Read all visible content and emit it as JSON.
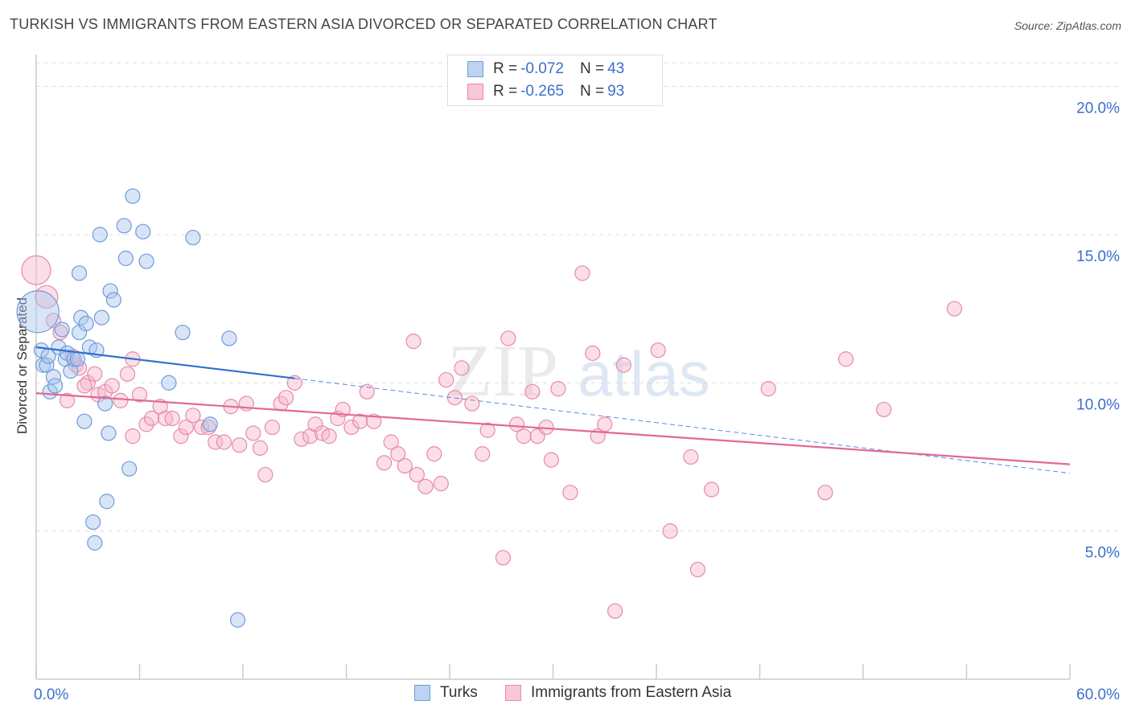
{
  "title": "TURKISH VS IMMIGRANTS FROM EASTERN ASIA DIVORCED OR SEPARATED CORRELATION CHART",
  "source": "Source: ZipAtlas.com",
  "watermark": {
    "zip": "ZIP",
    "atlas": "atlas"
  },
  "colors": {
    "turks_fill": "#a9c6ee",
    "turks_stroke": "#6f9ad9",
    "turks_line": "#2f6fd1",
    "asia_fill": "#f6b6ca",
    "asia_stroke": "#e68aa8",
    "asia_line": "#e06a94",
    "tick_label": "#3a6fcf",
    "grid": "#dddddd"
  },
  "legend": {
    "rows": [
      {
        "r_label": "R = ",
        "r_value": "-0.072",
        "n_label": "N = ",
        "n_value": "43"
      },
      {
        "r_label": "R = ",
        "r_value": "-0.265",
        "n_label": "N = ",
        "n_value": "93"
      }
    ]
  },
  "chart_data": {
    "type": "scatter",
    "title": "TURKISH VS IMMIGRANTS FROM EASTERN ASIA DIVORCED OR SEPARATED CORRELATION CHART",
    "xlabel": "",
    "ylabel": "Divorced or Separated",
    "xlim": [
      0,
      60
    ],
    "ylim": [
      0,
      20.8
    ],
    "x_tick_labels": [
      "0.0%",
      "60.0%"
    ],
    "y_ticks": [
      5,
      10,
      15,
      20
    ],
    "y_tick_labels": [
      "5.0%",
      "10.0%",
      "15.0%",
      "20.0%"
    ],
    "grid": true,
    "legend_position": "bottom-center",
    "series": [
      {
        "name": "Turks",
        "r": -0.072,
        "n": 43,
        "trend": {
          "x": [
            0,
            15
          ],
          "y": [
            11.2,
            10.15
          ],
          "dashed_to_x": 60,
          "dashed_to_y": 6.95
        },
        "points": [
          [
            0.1,
            12.4,
            26
          ],
          [
            0.3,
            11.1,
            9
          ],
          [
            0.4,
            10.6,
            9
          ],
          [
            0.6,
            10.6,
            9
          ],
          [
            0.7,
            10.9,
            9
          ],
          [
            0.8,
            9.7,
            9
          ],
          [
            1.0,
            10.2,
            9
          ],
          [
            1.1,
            9.9,
            9
          ],
          [
            1.3,
            11.2,
            9
          ],
          [
            1.5,
            11.8,
            9
          ],
          [
            1.7,
            10.8,
            9
          ],
          [
            1.8,
            11.0,
            9
          ],
          [
            2.0,
            10.4,
            9
          ],
          [
            2.2,
            10.8,
            9
          ],
          [
            2.4,
            10.8,
            9
          ],
          [
            2.5,
            11.7,
            9
          ],
          [
            2.5,
            13.7,
            9
          ],
          [
            2.6,
            12.2,
            9
          ],
          [
            2.8,
            8.7,
            9
          ],
          [
            2.9,
            12.0,
            9
          ],
          [
            3.1,
            11.2,
            9
          ],
          [
            3.3,
            5.3,
            9
          ],
          [
            3.4,
            4.6,
            9
          ],
          [
            3.5,
            11.1,
            9
          ],
          [
            3.7,
            15.0,
            9
          ],
          [
            3.8,
            12.2,
            9
          ],
          [
            4.0,
            9.3,
            9
          ],
          [
            4.1,
            6.0,
            9
          ],
          [
            4.2,
            8.3,
            9
          ],
          [
            4.3,
            13.1,
            9
          ],
          [
            4.5,
            12.8,
            9
          ],
          [
            5.1,
            15.3,
            9
          ],
          [
            5.2,
            14.2,
            9
          ],
          [
            5.4,
            7.1,
            9
          ],
          [
            5.6,
            16.3,
            9
          ],
          [
            6.2,
            15.1,
            9
          ],
          [
            6.4,
            14.1,
            9
          ],
          [
            7.7,
            10.0,
            9
          ],
          [
            8.5,
            11.7,
            9
          ],
          [
            9.1,
            14.9,
            9
          ],
          [
            10.1,
            8.6,
            9
          ],
          [
            11.2,
            11.5,
            9
          ],
          [
            11.7,
            2.0,
            9
          ]
        ]
      },
      {
        "name": "Immigrants from Eastern Asia",
        "r": -0.265,
        "n": 93,
        "trend": {
          "x": [
            0,
            60
          ],
          "y": [
            9.65,
            7.25
          ]
        },
        "points": [
          [
            0.0,
            13.8,
            18
          ],
          [
            0.6,
            12.9,
            14
          ],
          [
            1.0,
            12.1,
            9
          ],
          [
            1.4,
            11.7,
            9
          ],
          [
            2.1,
            10.9,
            9
          ],
          [
            2.3,
            10.6,
            9
          ],
          [
            2.5,
            10.5,
            9
          ],
          [
            3.0,
            10.0,
            9
          ],
          [
            3.4,
            10.3,
            9
          ],
          [
            3.6,
            9.6,
            9
          ],
          [
            4.0,
            9.7,
            9
          ],
          [
            4.4,
            9.9,
            9
          ],
          [
            4.9,
            9.4,
            9
          ],
          [
            5.3,
            10.3,
            9
          ],
          [
            5.6,
            10.8,
            9
          ],
          [
            6.0,
            9.6,
            9
          ],
          [
            6.4,
            8.6,
            9
          ],
          [
            6.7,
            8.8,
            9
          ],
          [
            7.2,
            9.2,
            9
          ],
          [
            7.5,
            8.8,
            9
          ],
          [
            7.9,
            8.8,
            9
          ],
          [
            8.4,
            8.2,
            9
          ],
          [
            8.7,
            8.5,
            9
          ],
          [
            9.1,
            8.9,
            9
          ],
          [
            9.6,
            8.5,
            9
          ],
          [
            10.0,
            8.5,
            9
          ],
          [
            10.4,
            8.0,
            9
          ],
          [
            10.9,
            8.0,
            9
          ],
          [
            11.3,
            9.2,
            9
          ],
          [
            11.8,
            7.9,
            9
          ],
          [
            12.2,
            9.3,
            9
          ],
          [
            12.6,
            8.3,
            9
          ],
          [
            13.0,
            7.8,
            9
          ],
          [
            13.3,
            6.9,
            9
          ],
          [
            13.7,
            8.5,
            9
          ],
          [
            14.2,
            9.3,
            9
          ],
          [
            14.5,
            9.5,
            9
          ],
          [
            15.0,
            10.0,
            9
          ],
          [
            15.4,
            8.1,
            9
          ],
          [
            15.9,
            8.2,
            9
          ],
          [
            16.2,
            8.6,
            9
          ],
          [
            16.6,
            8.3,
            9
          ],
          [
            17.0,
            8.2,
            9
          ],
          [
            17.5,
            8.8,
            9
          ],
          [
            17.8,
            9.1,
            9
          ],
          [
            18.3,
            8.5,
            9
          ],
          [
            18.8,
            8.7,
            9
          ],
          [
            19.2,
            9.7,
            9
          ],
          [
            19.6,
            8.7,
            9
          ],
          [
            20.2,
            7.3,
            9
          ],
          [
            20.6,
            8.0,
            9
          ],
          [
            21.0,
            7.6,
            9
          ],
          [
            21.4,
            7.2,
            9
          ],
          [
            21.9,
            11.4,
            9
          ],
          [
            22.1,
            6.9,
            9
          ],
          [
            22.6,
            6.5,
            9
          ],
          [
            23.1,
            7.6,
            9
          ],
          [
            23.5,
            6.6,
            9
          ],
          [
            23.8,
            10.1,
            9
          ],
          [
            24.3,
            9.5,
            9
          ],
          [
            24.7,
            10.5,
            9
          ],
          [
            25.3,
            9.3,
            9
          ],
          [
            25.9,
            7.6,
            9
          ],
          [
            26.2,
            8.4,
            9
          ],
          [
            27.1,
            4.1,
            9
          ],
          [
            27.4,
            11.5,
            9
          ],
          [
            27.9,
            8.6,
            9
          ],
          [
            28.3,
            8.2,
            9
          ],
          [
            28.8,
            9.7,
            9
          ],
          [
            29.1,
            8.2,
            9
          ],
          [
            29.6,
            8.5,
            9
          ],
          [
            29.9,
            7.4,
            9
          ],
          [
            30.3,
            9.8,
            9
          ],
          [
            31.0,
            6.3,
            9
          ],
          [
            31.7,
            13.7,
            9
          ],
          [
            32.3,
            11.0,
            9
          ],
          [
            32.6,
            8.2,
            9
          ],
          [
            33.0,
            8.6,
            9
          ],
          [
            33.6,
            2.3,
            9
          ],
          [
            34.1,
            10.6,
            9
          ],
          [
            36.1,
            11.1,
            9
          ],
          [
            36.8,
            5.0,
            9
          ],
          [
            38.0,
            7.5,
            9
          ],
          [
            38.4,
            3.7,
            9
          ],
          [
            39.2,
            6.4,
            9
          ],
          [
            42.5,
            9.8,
            9
          ],
          [
            45.8,
            6.3,
            9
          ],
          [
            47.0,
            10.8,
            9
          ],
          [
            49.2,
            9.1,
            9
          ],
          [
            53.3,
            12.5,
            9
          ],
          [
            1.8,
            9.4,
            9
          ],
          [
            2.8,
            9.9,
            9
          ],
          [
            5.6,
            8.2,
            9
          ]
        ]
      }
    ]
  },
  "bottom_legend": {
    "turks": "Turks",
    "asia": "Immigrants from Eastern Asia"
  }
}
